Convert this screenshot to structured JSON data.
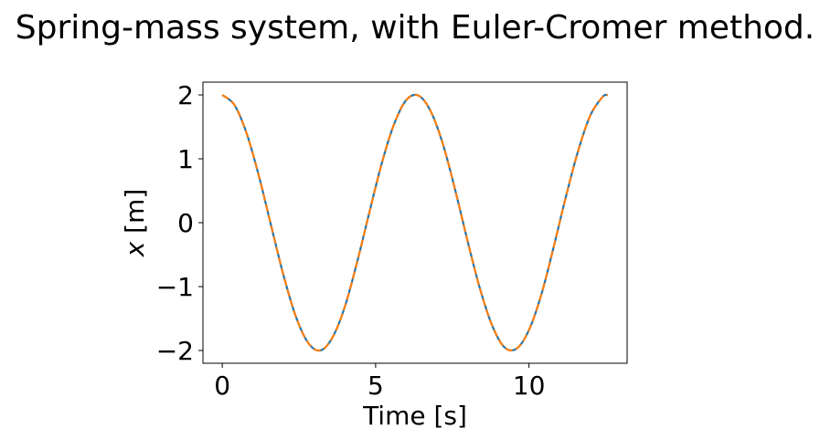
{
  "title": "Spring-mass system, with Euler-Cromer method.",
  "chart_data": {
    "type": "line",
    "title": "Spring-mass system, with Euler-Cromer method.",
    "xlabel": "Time [s]",
    "ylabel_var": "x",
    "ylabel_unit": " [m]",
    "xlim": [
      -0.63,
      13.2
    ],
    "ylim": [
      -2.2,
      2.2
    ],
    "xticks": [
      0,
      5,
      10
    ],
    "xtick_labels": [
      "0",
      "5",
      "10"
    ],
    "yticks": [
      -2,
      -1,
      0,
      1,
      2
    ],
    "ytick_labels": [
      "−2",
      "−1",
      "0",
      "1",
      "2"
    ],
    "grid": false,
    "legend": "none",
    "series": [
      {
        "color": "#1f77b4",
        "style": "solid",
        "x": [
          0.0,
          0.4,
          0.8,
          1.2,
          1.6,
          2.0,
          2.4,
          2.8,
          3.2,
          3.6,
          4.0,
          4.4,
          4.8,
          5.2,
          5.6,
          6.0,
          6.4,
          6.8,
          7.2,
          7.6,
          8.0,
          8.4,
          8.8,
          9.2,
          9.6,
          10.0,
          10.4,
          10.8,
          11.2,
          11.6,
          12.0,
          12.4,
          12.57
        ],
        "y": [
          2.0,
          1.84,
          1.39,
          0.72,
          -0.06,
          -0.83,
          -1.47,
          -1.88,
          -2.0,
          -1.79,
          -1.31,
          -0.61,
          0.17,
          0.93,
          1.54,
          1.92,
          1.99,
          1.74,
          1.22,
          0.5,
          -0.29,
          -1.03,
          -1.61,
          -1.95,
          -1.97,
          -1.68,
          -1.13,
          -0.39,
          0.4,
          1.12,
          1.68,
          1.97,
          2.0
        ]
      },
      {
        "color": "#ff7f0e",
        "style": "dashed",
        "x": [
          0.0,
          0.4,
          0.8,
          1.2,
          1.6,
          2.0,
          2.4,
          2.8,
          3.2,
          3.6,
          4.0,
          4.4,
          4.8,
          5.2,
          5.6,
          6.0,
          6.4,
          6.8,
          7.2,
          7.6,
          8.0,
          8.4,
          8.8,
          9.2,
          9.6,
          10.0,
          10.4,
          10.8,
          11.2,
          11.6,
          12.0,
          12.4,
          12.57
        ],
        "y": [
          2.0,
          1.84,
          1.39,
          0.72,
          -0.06,
          -0.83,
          -1.47,
          -1.88,
          -2.0,
          -1.79,
          -1.31,
          -0.61,
          0.17,
          0.93,
          1.54,
          1.92,
          1.99,
          1.74,
          1.22,
          0.5,
          -0.29,
          -1.03,
          -1.61,
          -1.95,
          -1.97,
          -1.68,
          -1.13,
          -0.39,
          0.4,
          1.12,
          1.68,
          1.97,
          2.0
        ]
      }
    ]
  }
}
